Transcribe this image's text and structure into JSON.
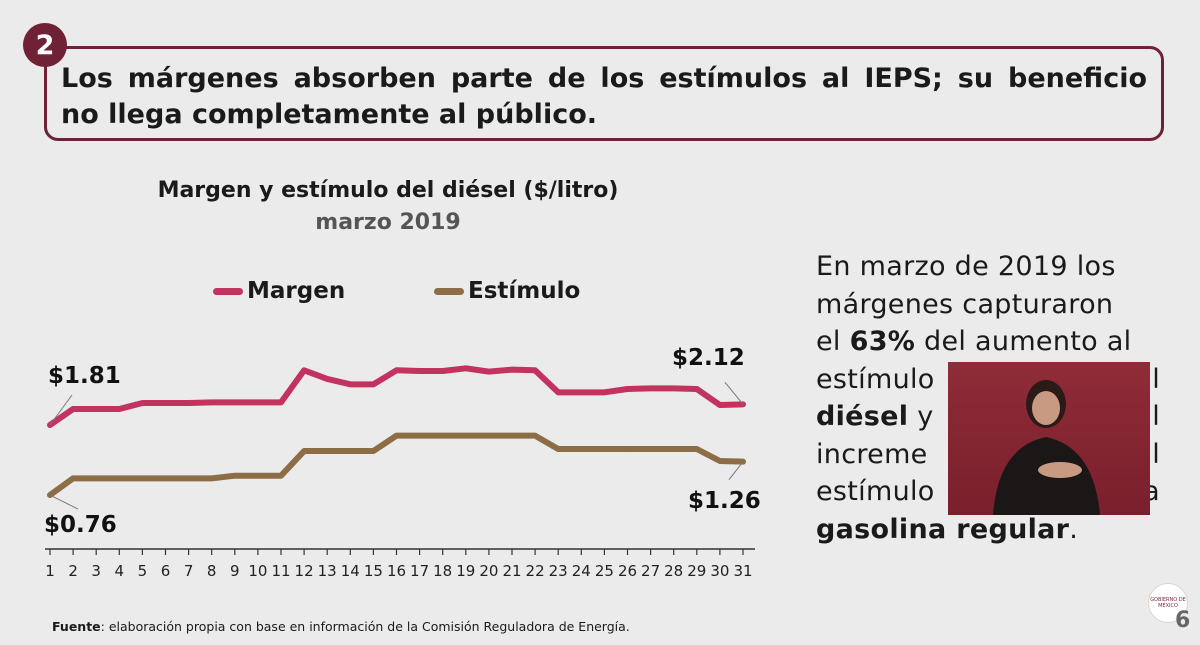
{
  "header": {
    "number": "2",
    "title_line1": "Los márgenes absorben parte de los estímulos al IEPS; su beneficio",
    "title_line2": "no llega completamente al público."
  },
  "chart_data": {
    "type": "line",
    "title": "Margen y estímulo del diésel ($/litro)",
    "subtitle": "marzo 2019",
    "x": [
      1,
      2,
      3,
      4,
      5,
      6,
      7,
      8,
      9,
      10,
      11,
      12,
      13,
      14,
      15,
      16,
      17,
      18,
      19,
      20,
      21,
      22,
      23,
      24,
      25,
      26,
      27,
      28,
      29,
      30,
      31
    ],
    "series": [
      {
        "name": "Margen",
        "color": "#c2335f",
        "values": [
          1.81,
          2.05,
          2.05,
          2.05,
          2.14,
          2.14,
          2.14,
          2.15,
          2.15,
          2.15,
          2.15,
          2.63,
          2.5,
          2.42,
          2.42,
          2.63,
          2.62,
          2.62,
          2.66,
          2.61,
          2.64,
          2.63,
          2.3,
          2.3,
          2.3,
          2.35,
          2.36,
          2.36,
          2.35,
          2.11,
          2.12
        ]
      },
      {
        "name": "Estímulo",
        "color": "#8c6d46",
        "values": [
          0.76,
          1.01,
          1.01,
          1.01,
          1.01,
          1.01,
          1.01,
          1.01,
          1.05,
          1.05,
          1.05,
          1.42,
          1.42,
          1.42,
          1.42,
          1.65,
          1.65,
          1.65,
          1.65,
          1.65,
          1.65,
          1.65,
          1.45,
          1.45,
          1.45,
          1.45,
          1.45,
          1.45,
          1.45,
          1.27,
          1.26
        ]
      }
    ],
    "annotations": [
      {
        "series": "Margen",
        "day": 1,
        "label": "$1.81"
      },
      {
        "series": "Margen",
        "day": 31,
        "label": "$2.12"
      },
      {
        "series": "Estímulo",
        "day": 1,
        "label": "$0.76"
      },
      {
        "series": "Estímulo",
        "day": 31,
        "label": "$1.26"
      }
    ],
    "legend": "top",
    "grid": false
  },
  "paragraph": {
    "l1": "En marzo de 2019 los",
    "l2": "márgenes capturaron",
    "l3a": "el ",
    "l3b": "63%",
    "l3c": " del aumento al",
    "l4a": "estímulo",
    "l4b": "l",
    "l5a": "diésel",
    "l5b": " y",
    "l5c": "l",
    "l6a": "increme",
    "l6b": "l",
    "l7a": "estímulo",
    "l7b": "a",
    "l8a": "gasolina regular",
    "l8b": "."
  },
  "footer": {
    "source_label": "Fuente",
    "source_text": ": elaboración propia con base en información de la Comisión Reguladora de Energía.",
    "page": "6",
    "seal_text": "GOBIERNO DE MÉXICO"
  }
}
